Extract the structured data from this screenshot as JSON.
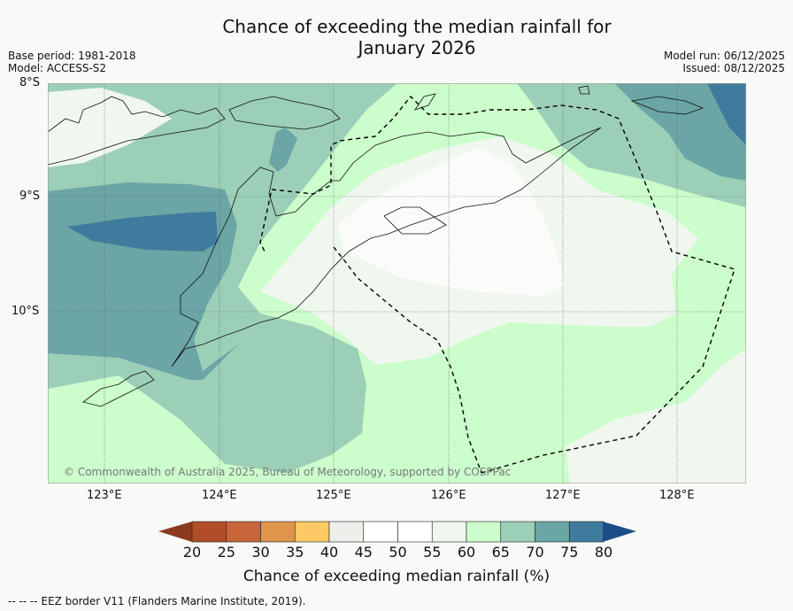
{
  "title_line1": "Chance of exceeding the median rainfall for",
  "title_line2": "January 2026",
  "base_period": "Base period: 1981-2018",
  "model": "Model: ACCESS-S2",
  "model_run": "Model run: 06/12/2025",
  "issued": "Issued: 08/12/2025",
  "lat_labels": [
    "8°S",
    "9°S",
    "10°S"
  ],
  "lon_labels": [
    "123°E",
    "124°E",
    "125°E",
    "126°E",
    "127°E",
    "128°E"
  ],
  "copyright": "© Commonwealth of Australia 2025, Bureau of Meteorology, supported by COSPPac",
  "colorbar": {
    "ticks": [
      "20",
      "25",
      "30",
      "35",
      "40",
      "45",
      "50",
      "55",
      "60",
      "65",
      "70",
      "75",
      "80"
    ],
    "colors": [
      "#8b3a1f",
      "#b24d29",
      "#c9653a",
      "#e0954d",
      "#fdc965",
      "#eeeeea",
      "#ffffff",
      "#ffffff",
      "#f0f7ee",
      "#ccfdcc",
      "#9ccfb7",
      "#6ba5a5",
      "#3f7b9c",
      "#1b4d88"
    ],
    "label": "Chance of exceeding median rainfall (%)"
  },
  "footer": "--  --  -- EEZ border V11 (Flanders Marine Institute, 2019)."
}
